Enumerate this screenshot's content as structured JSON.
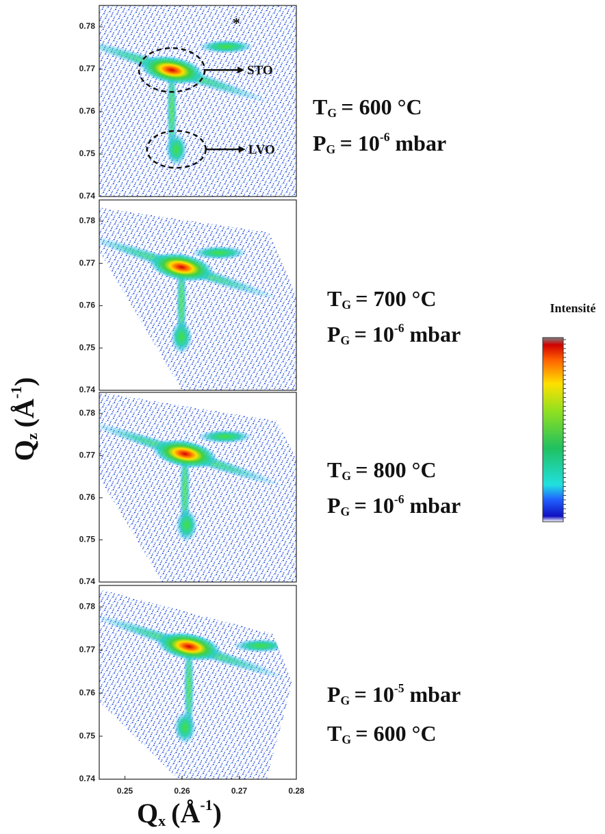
{
  "ylabel": {
    "var": "Q",
    "sub": "z",
    "unit": "(Å",
    "sup": "-1",
    "close": ")"
  },
  "xlabel": {
    "var": "Q",
    "sub": "x",
    "unit": "(Å",
    "sup": "-1",
    "close": ")"
  },
  "colorbar_label": "Intensité",
  "chart_data": [
    {
      "type": "map",
      "xlim": [
        0.2455,
        0.28
      ],
      "ylim": [
        0.74,
        0.785
      ],
      "yticks": [
        0.74,
        0.75,
        0.76,
        0.77,
        0.78
      ],
      "peaks": [
        {
          "x": 0.2582,
          "y": 0.7698
        },
        {
          "x": 0.259,
          "y": 0.7511
        },
        {
          "x": 0.2677,
          "y": 0.7753
        }
      ],
      "annotations": [
        "STO",
        "LVO",
        "*"
      ],
      "conditions": [
        {
          "var": "T",
          "sub": "G",
          "text": "= 600 °C"
        },
        {
          "var": "P",
          "sub": "G",
          "text": "= 10",
          "sup": "-6",
          "post": "mbar"
        }
      ]
    },
    {
      "type": "map",
      "xlim": [
        0.2455,
        0.28
      ],
      "ylim": [
        0.74,
        0.785
      ],
      "yticks": [
        0.74,
        0.75,
        0.76,
        0.77,
        0.78
      ],
      "peaks": [
        {
          "x": 0.2599,
          "y": 0.7691
        },
        {
          "x": 0.2599,
          "y": 0.7526
        },
        {
          "x": 0.2665,
          "y": 0.7725
        }
      ],
      "conditions": [
        {
          "var": "T",
          "sub": "G",
          "text": "= 700 °C"
        },
        {
          "var": "P",
          "sub": "G",
          "text": "= 10",
          "sup": "-6",
          "post": "mbar"
        }
      ]
    },
    {
      "type": "map",
      "xlim": [
        0.2455,
        0.28
      ],
      "ylim": [
        0.74,
        0.785
      ],
      "yticks": [
        0.74,
        0.75,
        0.76,
        0.77,
        0.78
      ],
      "peaks": [
        {
          "x": 0.2605,
          "y": 0.7704
        },
        {
          "x": 0.2608,
          "y": 0.7535
        },
        {
          "x": 0.2675,
          "y": 0.7745
        }
      ],
      "conditions": [
        {
          "var": "T",
          "sub": "G",
          "text": "= 800 °C"
        },
        {
          "var": "P",
          "sub": "G",
          "text": "= 10",
          "sup": "-6",
          "post": "mbar"
        }
      ]
    },
    {
      "type": "map",
      "xlim": [
        0.2455,
        0.28
      ],
      "ylim": [
        0.74,
        0.785
      ],
      "yticks": [
        0.74,
        0.75,
        0.76,
        0.77,
        0.78
      ],
      "xticks": [
        0.25,
        0.26,
        0.27,
        0.28
      ],
      "peaks": [
        {
          "x": 0.2612,
          "y": 0.7708
        },
        {
          "x": 0.2605,
          "y": 0.752
        },
        {
          "x": 0.2737,
          "y": 0.771
        }
      ],
      "conditions": [
        {
          "var": "P",
          "sub": "G",
          "text": "= 10",
          "sup": "-5",
          "post": "mbar"
        },
        {
          "var": "T",
          "sub": "G",
          "text": "= 600 °C"
        }
      ]
    }
  ]
}
